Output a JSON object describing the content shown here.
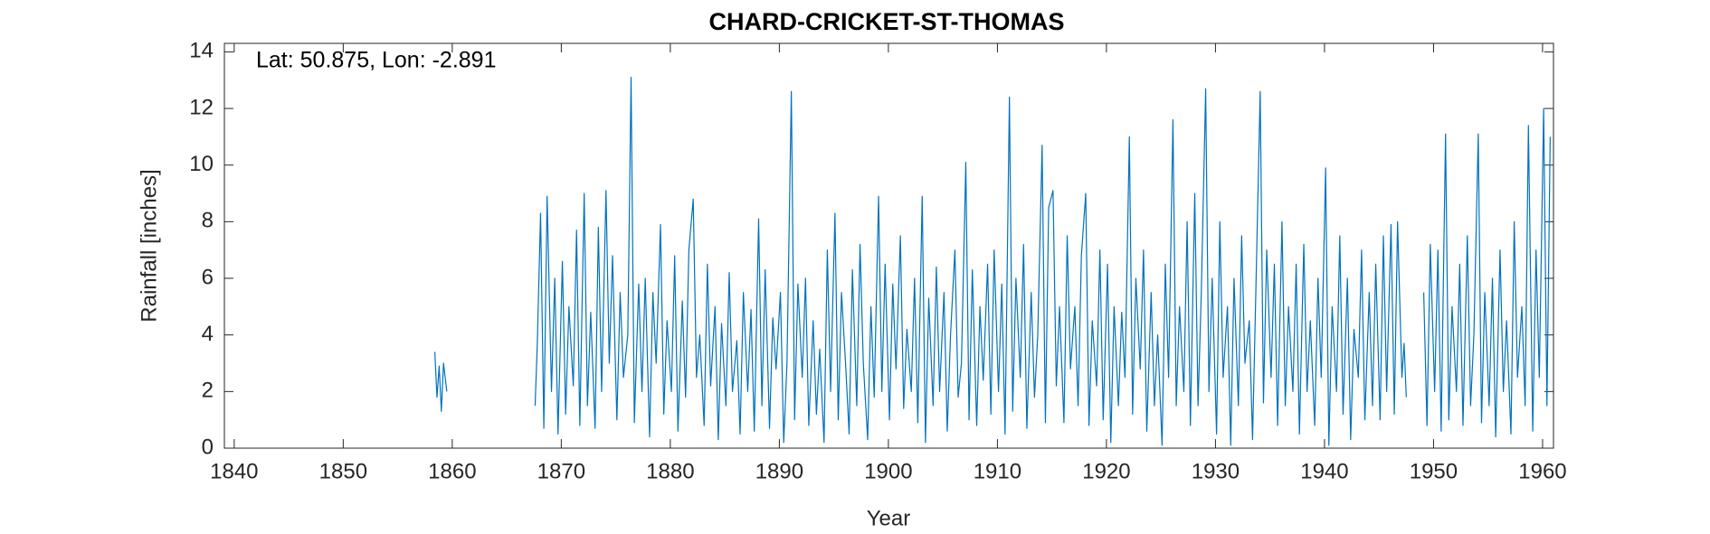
{
  "chart_data": {
    "type": "line",
    "title": "CHARD-CRICKET-ST-THOMAS",
    "annotation": "Lat: 50.875, Lon: -2.891",
    "xlabel": "Year",
    "ylabel": "Rainfall [inches]",
    "color": "#0072bd",
    "xlim": [
      1839.1,
      1961
    ],
    "ylim": [
      0,
      14.3
    ],
    "xticks": [
      1840,
      1850,
      1860,
      1870,
      1880,
      1890,
      1900,
      1910,
      1920,
      1930,
      1940,
      1950,
      1960
    ],
    "yticks": [
      0,
      2,
      4,
      6,
      8,
      10,
      12,
      14
    ],
    "x": [
      1858.4,
      1858.6,
      1858.8,
      1859.0,
      1859.2,
      1859.5,
      1863,
      1867.6,
      1867.8,
      1868.1,
      1868.4,
      1868.7,
      1869.1,
      1869.4,
      1869.7,
      1870.1,
      1870.4,
      1870.7,
      1871.1,
      1871.4,
      1871.7,
      1872.1,
      1872.4,
      1872.7,
      1873.1,
      1873.4,
      1873.7,
      1874.1,
      1874.4,
      1874.7,
      1875.1,
      1875.4,
      1875.7,
      1876.1,
      1876.4,
      1876.7,
      1877.1,
      1877.4,
      1877.7,
      1878.1,
      1878.4,
      1878.7,
      1879.1,
      1879.4,
      1879.7,
      1880.1,
      1880.4,
      1880.7,
      1881.1,
      1881.4,
      1881.7,
      1882.1,
      1882.4,
      1882.7,
      1883.1,
      1883.4,
      1883.7,
      1884.1,
      1884.4,
      1884.7,
      1885.1,
      1885.4,
      1885.7,
      1886.1,
      1886.4,
      1886.7,
      1887.1,
      1887.4,
      1887.7,
      1888.1,
      1888.4,
      1888.7,
      1889.1,
      1889.4,
      1889.7,
      1890.1,
      1890.4,
      1890.7,
      1891.1,
      1891.4,
      1891.7,
      1892.1,
      1892.4,
      1892.7,
      1893.1,
      1893.4,
      1893.7,
      1894.1,
      1894.4,
      1894.7,
      1895.1,
      1895.4,
      1895.7,
      1896.1,
      1896.4,
      1896.7,
      1897.1,
      1897.4,
      1897.7,
      1898.1,
      1898.4,
      1898.7,
      1899.1,
      1899.4,
      1899.7,
      1900.1,
      1900.4,
      1900.7,
      1901.1,
      1901.4,
      1901.7,
      1902.1,
      1902.4,
      1902.7,
      1903.1,
      1903.4,
      1903.7,
      1904.1,
      1904.4,
      1904.7,
      1905.1,
      1905.4,
      1905.7,
      1906.1,
      1906.4,
      1906.7,
      1907.1,
      1907.4,
      1907.7,
      1908.1,
      1908.4,
      1908.7,
      1909.1,
      1909.4,
      1909.7,
      1910.1,
      1910.4,
      1910.7,
      1911.1,
      1911.4,
      1911.7,
      1912.1,
      1912.4,
      1912.7,
      1913.1,
      1913.4,
      1913.7,
      1914.1,
      1914.4,
      1914.7,
      1915.1,
      1915.4,
      1915.7,
      1916.1,
      1916.4,
      1916.7,
      1917.1,
      1917.4,
      1917.7,
      1918.1,
      1918.4,
      1918.7,
      1919.1,
      1919.4,
      1919.7,
      1920.1,
      1920.4,
      1920.7,
      1921.1,
      1921.4,
      1921.7,
      1922.1,
      1922.4,
      1922.7,
      1923.1,
      1923.4,
      1923.7,
      1924.1,
      1924.4,
      1924.7,
      1925.1,
      1925.4,
      1925.7,
      1926.1,
      1926.4,
      1926.7,
      1927.1,
      1927.4,
      1927.7,
      1928.1,
      1928.4,
      1928.7,
      1929.1,
      1929.4,
      1929.7,
      1930.1,
      1930.4,
      1930.7,
      1931.1,
      1931.4,
      1931.7,
      1932.1,
      1932.4,
      1932.7,
      1933.1,
      1933.4,
      1933.7,
      1934.1,
      1934.4,
      1934.7,
      1935.1,
      1935.4,
      1935.7,
      1936.1,
      1936.4,
      1936.7,
      1937.1,
      1937.4,
      1937.7,
      1938.1,
      1938.4,
      1938.7,
      1939.1,
      1939.4,
      1939.7,
      1940.1,
      1940.4,
      1940.7,
      1941.1,
      1941.4,
      1941.7,
      1942.1,
      1942.4,
      1942.7,
      1943.1,
      1943.4,
      1943.7,
      1944.1,
      1944.4,
      1944.7,
      1945.1,
      1945.4,
      1945.7,
      1946.1,
      1946.4,
      1946.7,
      1947.1,
      1947.3,
      1947.5,
      1948.2,
      1949.1,
      1949.4,
      1949.7,
      1950.1,
      1950.4,
      1950.7,
      1951.1,
      1951.4,
      1951.7,
      1952.1,
      1952.4,
      1952.7,
      1953.1,
      1953.4,
      1953.7,
      1954.1,
      1954.4,
      1954.7,
      1955.1,
      1955.4,
      1955.7,
      1956.1,
      1956.4,
      1956.7,
      1957.1,
      1957.4,
      1957.7,
      1958.1,
      1958.4,
      1958.7,
      1959.1,
      1959.4,
      1959.7,
      1960.1,
      1960.4,
      1960.7
    ],
    "values": [
      3.4,
      1.8,
      2.9,
      1.3,
      3.0,
      2.0,
      null,
      1.5,
      3.7,
      8.3,
      0.7,
      8.9,
      2.0,
      6.0,
      0.5,
      6.6,
      1.2,
      5.0,
      2.2,
      7.7,
      0.8,
      9.0,
      1.5,
      4.8,
      0.7,
      7.8,
      2.0,
      9.1,
      3.0,
      6.8,
      1.0,
      5.5,
      2.5,
      4.0,
      13.1,
      0.9,
      5.8,
      2.0,
      6.0,
      0.4,
      5.5,
      3.0,
      7.9,
      1.2,
      4.5,
      2.0,
      6.8,
      0.6,
      5.2,
      1.8,
      7.0,
      8.8,
      2.5,
      4.0,
      0.8,
      6.5,
      2.2,
      5.0,
      0.3,
      4.4,
      1.5,
      6.2,
      2.0,
      3.8,
      0.5,
      5.5,
      2.0,
      4.9,
      0.6,
      8.1,
      1.5,
      6.3,
      0.7,
      4.6,
      2.8,
      5.5,
      0.2,
      3.0,
      12.6,
      1.0,
      5.8,
      2.5,
      6.0,
      0.8,
      4.5,
      1.2,
      3.5,
      0.2,
      7.0,
      2.0,
      8.3,
      1.0,
      5.5,
      2.8,
      0.5,
      6.3,
      1.5,
      7.2,
      3.0,
      0.3,
      5.0,
      1.8,
      8.9,
      2.0,
      6.5,
      1.0,
      5.8,
      2.8,
      7.5,
      1.4,
      4.2,
      2.0,
      6.0,
      0.9,
      8.9,
      0.2,
      5.3,
      1.5,
      6.4,
      2.0,
      5.5,
      0.6,
      4.0,
      7.0,
      1.8,
      3.0,
      10.1,
      1.0,
      6.3,
      0.8,
      5.0,
      2.4,
      6.5,
      1.2,
      7.0,
      2.0,
      5.8,
      0.5,
      12.4,
      1.3,
      6.0,
      2.5,
      7.2,
      0.7,
      5.5,
      1.8,
      4.0,
      10.7,
      0.9,
      8.5,
      9.1,
      2.2,
      5.0,
      0.9,
      7.5,
      2.8,
      5.0,
      1.5,
      6.8,
      9.0,
      0.8,
      4.5,
      2.2,
      7.0,
      1.0,
      6.5,
      0.2,
      5.0,
      1.5,
      4.8,
      2.5,
      11.0,
      1.2,
      6.0,
      2.8,
      7.0,
      0.6,
      5.5,
      1.5,
      4.0,
      0.1,
      6.5,
      2.5,
      11.6,
      1.5,
      5.0,
      2.0,
      8.0,
      0.8,
      9.0,
      1.5,
      5.5,
      12.7,
      2.0,
      6.0,
      0.5,
      8.0,
      2.5,
      5.0,
      0.1,
      6.0,
      1.5,
      7.5,
      3.0,
      4.5,
      0.3,
      5.5,
      12.6,
      1.6,
      7.0,
      2.5,
      6.5,
      0.8,
      8.0,
      1.5,
      5.0,
      2.0,
      6.5,
      0.5,
      7.2,
      2.0,
      4.5,
      0.8,
      6.0,
      2.5,
      9.9,
      0.1,
      5.0,
      2.0,
      7.5,
      1.2,
      6.0,
      0.3,
      4.2,
      2.5,
      7.0,
      1.0,
      5.5,
      1.5,
      6.5,
      1.0,
      7.5,
      2.0,
      7.9,
      1.2,
      8.0,
      2.5,
      3.7,
      1.8,
      null,
      5.5,
      0.8,
      7.2,
      2.0,
      7.0,
      0.6,
      11.1,
      1.0,
      5.0,
      2.0,
      6.5,
      0.8,
      7.5,
      1.5,
      4.0,
      11.1,
      0.9,
      5.5,
      1.5,
      6.0,
      0.4,
      7.0,
      2.0,
      4.5,
      0.5,
      8.0,
      2.5,
      5.0,
      1.5,
      11.4,
      0.6,
      7.0,
      2.5,
      12.0,
      1.5,
      11.0
    ]
  }
}
